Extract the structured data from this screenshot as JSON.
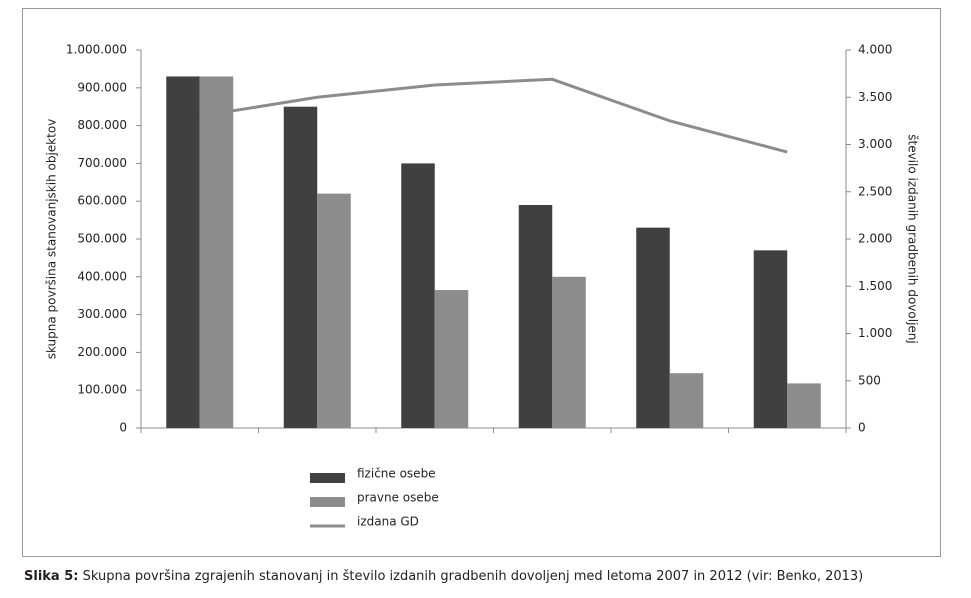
{
  "chart_data": {
    "type": "bar",
    "caption_label": "Slika 5:",
    "caption": "Skupna površina zgrajenih stanovanj in število izdanih gradbenih dovoljenj med letoma 2007 in 2012 (vir: Benko, 2013)",
    "y_label": "skupna površina stanovanjskih objektov",
    "y2_label": "število izdanih gradbenih dovoljenj",
    "categories": [
      null,
      null,
      null,
      null,
      null,
      null
    ],
    "series": [
      {
        "name": "fizične osebe",
        "color": "#404040",
        "type": "bar",
        "values": [
          930000,
          850000,
          700000,
          590000,
          530000,
          470000
        ]
      },
      {
        "name": "pravne osebe",
        "color": "#8c8c8c",
        "type": "bar",
        "values": [
          930000,
          620000,
          365000,
          400000,
          145000,
          118000
        ]
      },
      {
        "name": "izdana GD",
        "color": "#8c8c8c",
        "type": "line",
        "axis": "y2",
        "values": [
          3300,
          3500,
          3630,
          3690,
          3250,
          2920
        ]
      }
    ],
    "ylim": [
      0,
      1000000
    ],
    "yticks": [
      0,
      {
        "value": 100000,
        "label": "100.000"
      },
      {
        "value": 200000,
        "label": "200.000"
      },
      {
        "value": 300000,
        "label": "300.000"
      },
      {
        "value": 400000,
        "label": "400.000"
      },
      {
        "value": 500000,
        "label": "500.000"
      },
      {
        "value": 600000,
        "label": "600.000"
      },
      {
        "value": 700000,
        "label": "700.000"
      },
      {
        "value": 800000,
        "label": "800.000"
      },
      {
        "value": 900000,
        "label": "900.000"
      },
      {
        "value": 1000000,
        "label": "1.000.000"
      }
    ],
    "y2lim": [
      0,
      4000
    ],
    "y2ticks": [
      0,
      500,
      {
        "value": 1000,
        "label": "1.000"
      },
      {
        "value": 1500,
        "label": "1.500"
      },
      {
        "value": 2000,
        "label": "2.000"
      },
      {
        "value": 2500,
        "label": "2.500"
      },
      {
        "value": 3000,
        "label": "3.000"
      },
      {
        "value": 3500,
        "label": "3.500"
      },
      {
        "value": 4000,
        "label": "4.000"
      }
    ],
    "grid": false,
    "legend": "bottom"
  }
}
